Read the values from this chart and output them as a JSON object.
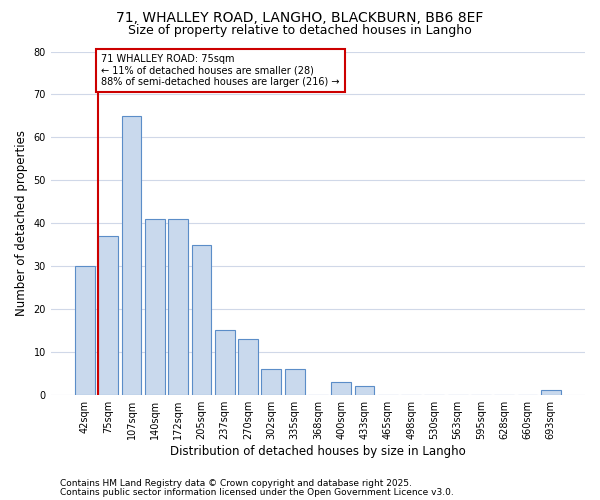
{
  "title1": "71, WHALLEY ROAD, LANGHO, BLACKBURN, BB6 8EF",
  "title2": "Size of property relative to detached houses in Langho",
  "xlabel": "Distribution of detached houses by size in Langho",
  "ylabel": "Number of detached properties",
  "categories": [
    "42sqm",
    "75sqm",
    "107sqm",
    "140sqm",
    "172sqm",
    "205sqm",
    "237sqm",
    "270sqm",
    "302sqm",
    "335sqm",
    "368sqm",
    "400sqm",
    "433sqm",
    "465sqm",
    "498sqm",
    "530sqm",
    "563sqm",
    "595sqm",
    "628sqm",
    "660sqm",
    "693sqm"
  ],
  "values": [
    30,
    37,
    65,
    41,
    41,
    35,
    15,
    13,
    6,
    6,
    0,
    3,
    2,
    0,
    0,
    0,
    0,
    0,
    0,
    0,
    1
  ],
  "highlight_index": 1,
  "bar_color": "#c9d9ed",
  "bar_edge_color": "#5b8dc8",
  "highlight_line_color": "#cc0000",
  "ylim": [
    0,
    80
  ],
  "yticks": [
    0,
    10,
    20,
    30,
    40,
    50,
    60,
    70,
    80
  ],
  "annotation_title": "71 WHALLEY ROAD: 75sqm",
  "annotation_line1": "← 11% of detached houses are smaller (28)",
  "annotation_line2": "88% of semi-detached houses are larger (216) →",
  "annotation_box_color": "#ffffff",
  "annotation_box_edge_color": "#cc0000",
  "footer1": "Contains HM Land Registry data © Crown copyright and database right 2025.",
  "footer2": "Contains public sector information licensed under the Open Government Licence v3.0.",
  "background_color": "#ffffff",
  "plot_background_color": "#ffffff",
  "grid_color": "#d0d8e8",
  "title_fontsize": 10,
  "subtitle_fontsize": 9,
  "axis_label_fontsize": 8.5,
  "tick_fontsize": 7,
  "annotation_fontsize": 7,
  "footer_fontsize": 6.5
}
